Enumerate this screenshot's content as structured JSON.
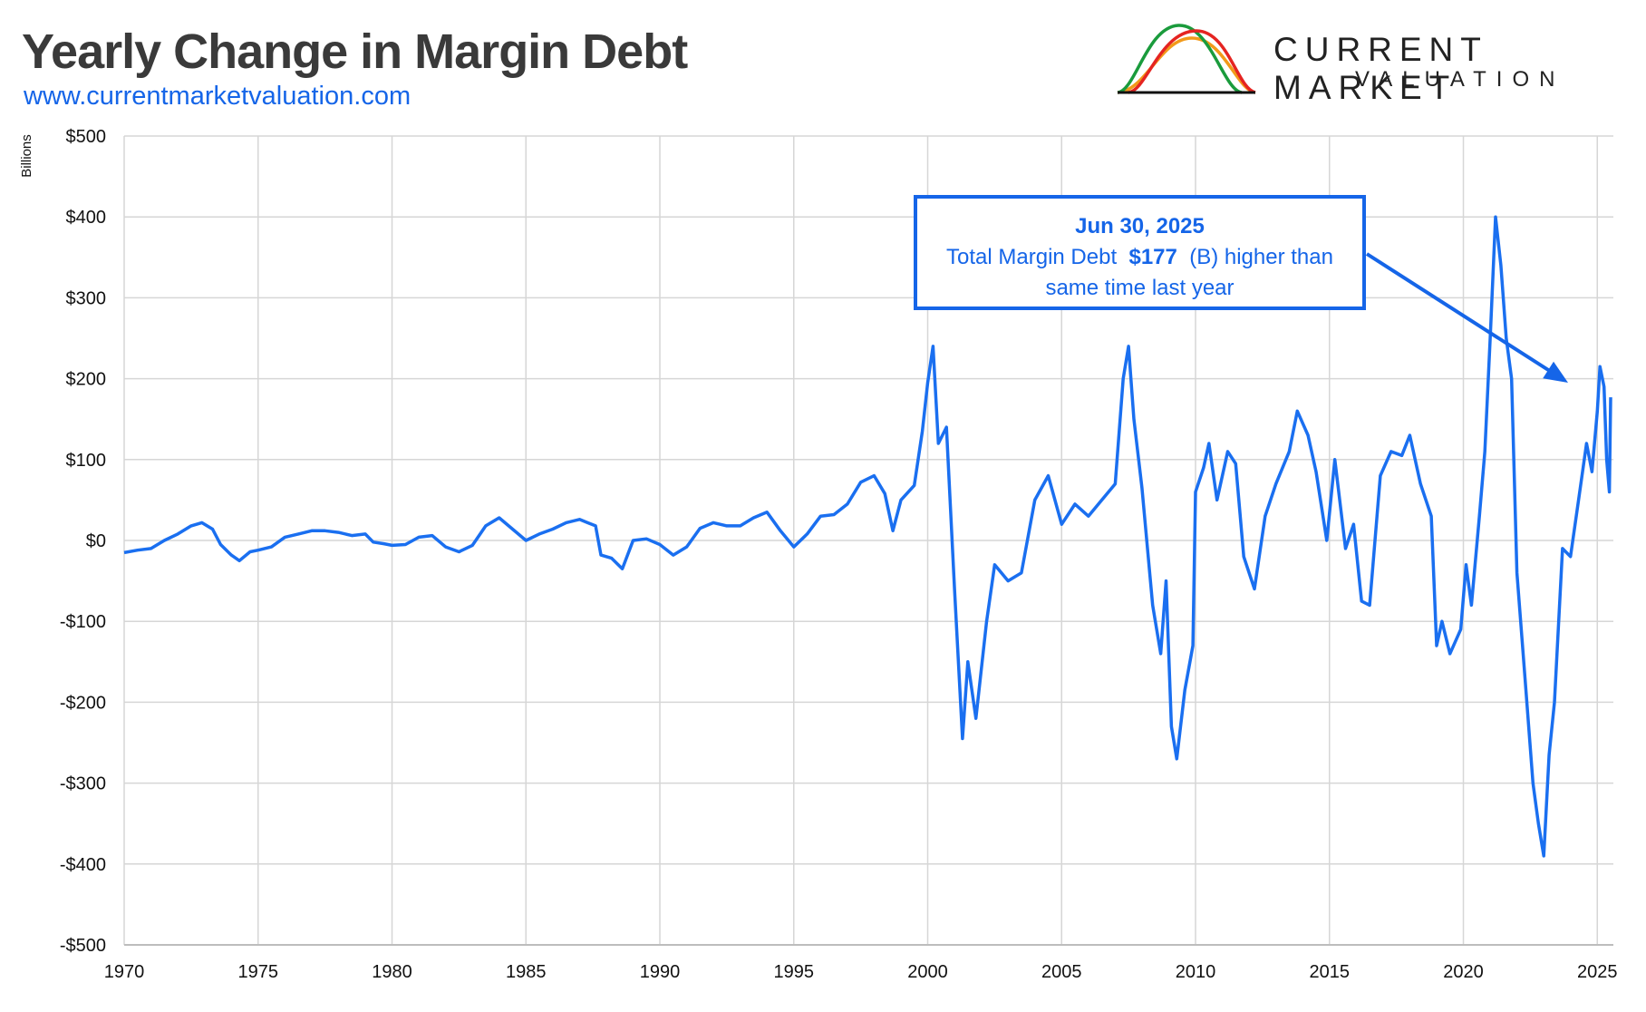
{
  "title": "Yearly Change in Margin Debt",
  "subtitle": "www.currentmarketvaluation.com",
  "logo": {
    "line1": "CURRENT MARKET",
    "line2": "VALUATION",
    "colors": [
      "#f29a1a",
      "#1a9b3c",
      "#e52421",
      "#111111"
    ]
  },
  "callout": {
    "date": "Jun 30, 2025",
    "prefix": "Total Margin Debt",
    "value": "$177",
    "suffix": "(B) higher than",
    "line3": "same time last year"
  },
  "chart_data": {
    "type": "line",
    "ylabel": "Billions",
    "xlabel": "",
    "xlim": [
      1970,
      2025.6
    ],
    "ylim": [
      -500,
      500
    ],
    "x_ticks": [
      1970,
      1975,
      1980,
      1985,
      1990,
      1995,
      2000,
      2005,
      2010,
      2015,
      2020,
      2025
    ],
    "y_ticks": [
      -500,
      -400,
      -300,
      -200,
      -100,
      0,
      100,
      200,
      300,
      400,
      500
    ],
    "y_tick_labels": [
      "-$500",
      "-$400",
      "-$300",
      "-$200",
      "-$100",
      "$0",
      "$100",
      "$200",
      "$300",
      "$400",
      "$500"
    ],
    "grid": true,
    "line_color": "#1a6ff0",
    "series": [
      {
        "points": [
          [
            1970.0,
            -15
          ],
          [
            1970.5,
            -12
          ],
          [
            1971.0,
            -10
          ],
          [
            1971.5,
            0
          ],
          [
            1972.0,
            8
          ],
          [
            1972.5,
            18
          ],
          [
            1972.9,
            22
          ],
          [
            1973.3,
            14
          ],
          [
            1973.6,
            -5
          ],
          [
            1974.0,
            -18
          ],
          [
            1974.3,
            -25
          ],
          [
            1974.7,
            -14
          ],
          [
            1975.0,
            -12
          ],
          [
            1975.5,
            -8
          ],
          [
            1976.0,
            4
          ],
          [
            1976.5,
            8
          ],
          [
            1977.0,
            12
          ],
          [
            1977.5,
            12
          ],
          [
            1978.0,
            10
          ],
          [
            1978.5,
            6
          ],
          [
            1979.0,
            8
          ],
          [
            1979.3,
            -2
          ],
          [
            1979.7,
            -4
          ],
          [
            1980.0,
            -6
          ],
          [
            1980.5,
            -5
          ],
          [
            1981.0,
            4
          ],
          [
            1981.5,
            6
          ],
          [
            1982.0,
            -8
          ],
          [
            1982.5,
            -14
          ],
          [
            1983.0,
            -6
          ],
          [
            1983.5,
            18
          ],
          [
            1984.0,
            28
          ],
          [
            1984.5,
            14
          ],
          [
            1985.0,
            0
          ],
          [
            1985.5,
            8
          ],
          [
            1986.0,
            14
          ],
          [
            1986.5,
            22
          ],
          [
            1987.0,
            26
          ],
          [
            1987.3,
            22
          ],
          [
            1987.6,
            18
          ],
          [
            1987.8,
            -18
          ],
          [
            1988.2,
            -22
          ],
          [
            1988.6,
            -35
          ],
          [
            1989.0,
            0
          ],
          [
            1989.5,
            2
          ],
          [
            1990.0,
            -5
          ],
          [
            1990.5,
            -18
          ],
          [
            1991.0,
            -8
          ],
          [
            1991.5,
            15
          ],
          [
            1992.0,
            22
          ],
          [
            1992.5,
            18
          ],
          [
            1993.0,
            18
          ],
          [
            1993.5,
            28
          ],
          [
            1994.0,
            35
          ],
          [
            1994.5,
            12
          ],
          [
            1995.0,
            -8
          ],
          [
            1995.5,
            8
          ],
          [
            1996.0,
            30
          ],
          [
            1996.5,
            32
          ],
          [
            1997.0,
            45
          ],
          [
            1997.5,
            72
          ],
          [
            1998.0,
            80
          ],
          [
            1998.4,
            58
          ],
          [
            1998.7,
            12
          ],
          [
            1999.0,
            50
          ],
          [
            1999.5,
            68
          ],
          [
            1999.8,
            135
          ],
          [
            2000.0,
            195
          ],
          [
            2000.2,
            240
          ],
          [
            2000.4,
            120
          ],
          [
            2000.7,
            140
          ],
          [
            2001.0,
            -60
          ],
          [
            2001.3,
            -245
          ],
          [
            2001.5,
            -150
          ],
          [
            2001.8,
            -220
          ],
          [
            2002.2,
            -100
          ],
          [
            2002.5,
            -30
          ],
          [
            2003.0,
            -50
          ],
          [
            2003.5,
            -40
          ],
          [
            2004.0,
            50
          ],
          [
            2004.5,
            80
          ],
          [
            2005.0,
            20
          ],
          [
            2005.5,
            45
          ],
          [
            2006.0,
            30
          ],
          [
            2006.5,
            50
          ],
          [
            2007.0,
            70
          ],
          [
            2007.3,
            200
          ],
          [
            2007.5,
            240
          ],
          [
            2007.7,
            150
          ],
          [
            2008.0,
            65
          ],
          [
            2008.4,
            -80
          ],
          [
            2008.7,
            -140
          ],
          [
            2008.9,
            -50
          ],
          [
            2009.1,
            -230
          ],
          [
            2009.3,
            -270
          ],
          [
            2009.6,
            -185
          ],
          [
            2009.9,
            -130
          ],
          [
            2010.0,
            60
          ],
          [
            2010.3,
            90
          ],
          [
            2010.5,
            120
          ],
          [
            2010.8,
            50
          ],
          [
            2011.2,
            110
          ],
          [
            2011.5,
            95
          ],
          [
            2011.8,
            -20
          ],
          [
            2012.2,
            -60
          ],
          [
            2012.6,
            30
          ],
          [
            2013.0,
            70
          ],
          [
            2013.5,
            110
          ],
          [
            2013.8,
            160
          ],
          [
            2014.2,
            130
          ],
          [
            2014.5,
            85
          ],
          [
            2014.9,
            0
          ],
          [
            2015.2,
            100
          ],
          [
            2015.6,
            -10
          ],
          [
            2015.9,
            20
          ],
          [
            2016.2,
            -75
          ],
          [
            2016.5,
            -80
          ],
          [
            2016.9,
            80
          ],
          [
            2017.3,
            110
          ],
          [
            2017.7,
            105
          ],
          [
            2018.0,
            130
          ],
          [
            2018.4,
            70
          ],
          [
            2018.8,
            30
          ],
          [
            2019.0,
            -130
          ],
          [
            2019.2,
            -100
          ],
          [
            2019.5,
            -140
          ],
          [
            2019.9,
            -110
          ],
          [
            2020.1,
            -30
          ],
          [
            2020.3,
            -80
          ],
          [
            2020.6,
            30
          ],
          [
            2020.8,
            110
          ],
          [
            2021.0,
            250
          ],
          [
            2021.2,
            400
          ],
          [
            2021.4,
            340
          ],
          [
            2021.6,
            250
          ],
          [
            2021.8,
            200
          ],
          [
            2022.0,
            -40
          ],
          [
            2022.3,
            -170
          ],
          [
            2022.6,
            -300
          ],
          [
            2022.8,
            -350
          ],
          [
            2023.0,
            -390
          ],
          [
            2023.2,
            -265
          ],
          [
            2023.4,
            -200
          ],
          [
            2023.7,
            -10
          ],
          [
            2024.0,
            -20
          ],
          [
            2024.3,
            50
          ],
          [
            2024.6,
            120
          ],
          [
            2024.8,
            85
          ],
          [
            2025.0,
            160
          ],
          [
            2025.1,
            215
          ],
          [
            2025.25,
            190
          ],
          [
            2025.35,
            100
          ],
          [
            2025.45,
            60
          ],
          [
            2025.5,
            177
          ]
        ]
      }
    ]
  }
}
